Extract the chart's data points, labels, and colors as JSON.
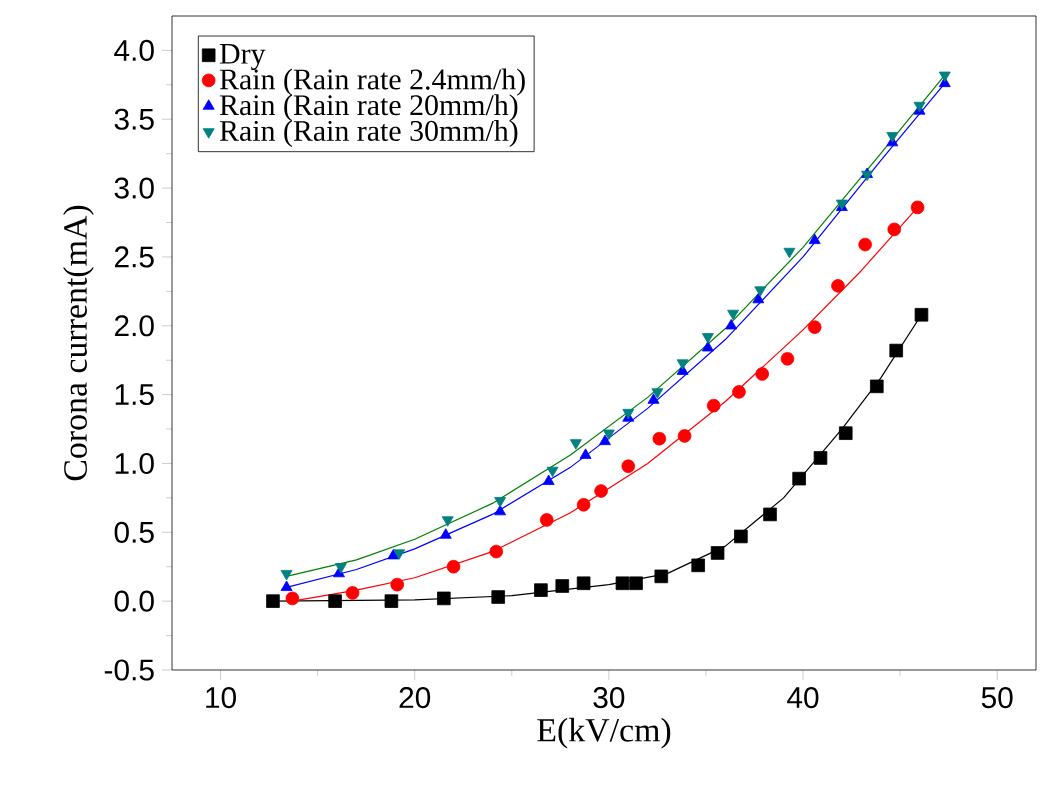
{
  "chart_data": {
    "type": "scatter",
    "xlabel": "E(kV/cm)",
    "ylabel": "Corona current(mA)",
    "xlim": [
      7.5,
      52
    ],
    "ylim": [
      -0.5,
      4.25
    ],
    "xticks": [
      10,
      20,
      30,
      40,
      50
    ],
    "yticks": [
      -0.5,
      {
        "value": 0,
        "label": "0.0"
      },
      0.5,
      {
        "value": 1,
        "label": "1.0"
      },
      1.5,
      {
        "value": 2,
        "label": "2.0"
      },
      2.5,
      {
        "value": 3,
        "label": "3.0"
      },
      3.5,
      {
        "value": 4,
        "label": "4.0"
      }
    ],
    "legend": "top left",
    "grid": false,
    "series": [
      {
        "name": "Dry",
        "color": "#000000",
        "marker": "square",
        "x": [
          12.7,
          15.9,
          18.8,
          21.5,
          24.3,
          26.5,
          27.6,
          28.7,
          30.7,
          31.4,
          32.7,
          34.6,
          35.6,
          36.8,
          38.3,
          39.8,
          40.9,
          42.2,
          43.8,
          44.8,
          46.1
        ],
        "values": [
          0.0,
          0.0,
          0.0,
          0.02,
          0.03,
          0.08,
          0.11,
          0.13,
          0.13,
          0.13,
          0.18,
          0.26,
          0.35,
          0.47,
          0.63,
          0.89,
          1.04,
          1.22,
          1.56,
          1.82,
          2.08
        ]
      },
      {
        "name": "Rain (Rain rate 2.4mm/h)",
        "color": "#ff0000",
        "marker": "circle",
        "x": [
          13.7,
          16.8,
          19.1,
          22.0,
          24.2,
          26.8,
          28.7,
          29.6,
          31.0,
          32.6,
          33.9,
          35.4,
          36.7,
          37.9,
          39.2,
          40.6,
          41.8,
          43.2,
          44.7,
          45.9
        ],
        "values": [
          0.02,
          0.06,
          0.12,
          0.25,
          0.36,
          0.59,
          0.7,
          0.8,
          0.98,
          1.18,
          1.2,
          1.42,
          1.52,
          1.65,
          1.76,
          1.99,
          2.29,
          2.59,
          2.7,
          2.86
        ]
      },
      {
        "name": "Rain (Rain rate 20mm/h)",
        "color": "#0000ff",
        "marker": "triangle",
        "x": [
          13.4,
          16.1,
          18.9,
          21.6,
          24.4,
          26.9,
          28.8,
          29.8,
          31.0,
          32.3,
          33.8,
          35.1,
          36.3,
          37.7,
          40.6,
          42.0,
          43.3,
          44.6,
          46.0,
          47.3
        ],
        "values": [
          0.1,
          0.2,
          0.33,
          0.48,
          0.65,
          0.87,
          1.06,
          1.16,
          1.33,
          1.46,
          1.67,
          1.84,
          2.0,
          2.19,
          2.62,
          2.86,
          3.1,
          3.33,
          3.56,
          3.76
        ]
      },
      {
        "name": "Rain (Rain rate 30mm/h)",
        "color": "#008080",
        "marker": "triangle-down",
        "x": [
          13.4,
          16.2,
          19.2,
          21.7,
          24.4,
          27.1,
          28.3,
          30.0,
          31.0,
          32.5,
          33.8,
          35.1,
          36.4,
          37.8,
          39.3,
          42.0,
          43.3,
          44.6,
          46.0,
          47.3
        ],
        "values": [
          0.2,
          0.25,
          0.35,
          0.59,
          0.73,
          0.95,
          1.15,
          1.22,
          1.37,
          1.52,
          1.73,
          1.92,
          2.09,
          2.26,
          2.54,
          2.89,
          3.1,
          3.38,
          3.6,
          3.82
        ]
      },
      {
        "type": "line",
        "color": "#000000",
        "x": [
          12.7,
          20,
          25,
          30,
          33,
          36,
          39,
          42,
          44,
          46.1
        ],
        "values": [
          0.0,
          0.01,
          0.04,
          0.12,
          0.2,
          0.4,
          0.75,
          1.25,
          1.62,
          2.08
        ]
      },
      {
        "type": "line",
        "color": "#ff0000",
        "x": [
          13.7,
          17,
          20,
          24,
          28,
          32,
          36,
          40,
          43,
          45.9
        ],
        "values": [
          0.0,
          0.08,
          0.17,
          0.36,
          0.64,
          1.0,
          1.45,
          1.97,
          2.4,
          2.86
        ]
      },
      {
        "type": "line",
        "color": "#0000ff",
        "x": [
          13.4,
          17,
          20,
          24,
          28,
          32,
          36,
          40,
          44,
          47.3
        ],
        "values": [
          0.1,
          0.23,
          0.38,
          0.63,
          0.97,
          1.4,
          1.9,
          2.5,
          3.2,
          3.76
        ]
      },
      {
        "type": "line",
        "color": "#008000",
        "x": [
          13.4,
          17,
          20,
          24,
          28,
          32,
          36,
          40,
          44,
          47.3
        ],
        "values": [
          0.18,
          0.3,
          0.45,
          0.71,
          1.06,
          1.48,
          1.98,
          2.57,
          3.25,
          3.82
        ]
      }
    ]
  }
}
